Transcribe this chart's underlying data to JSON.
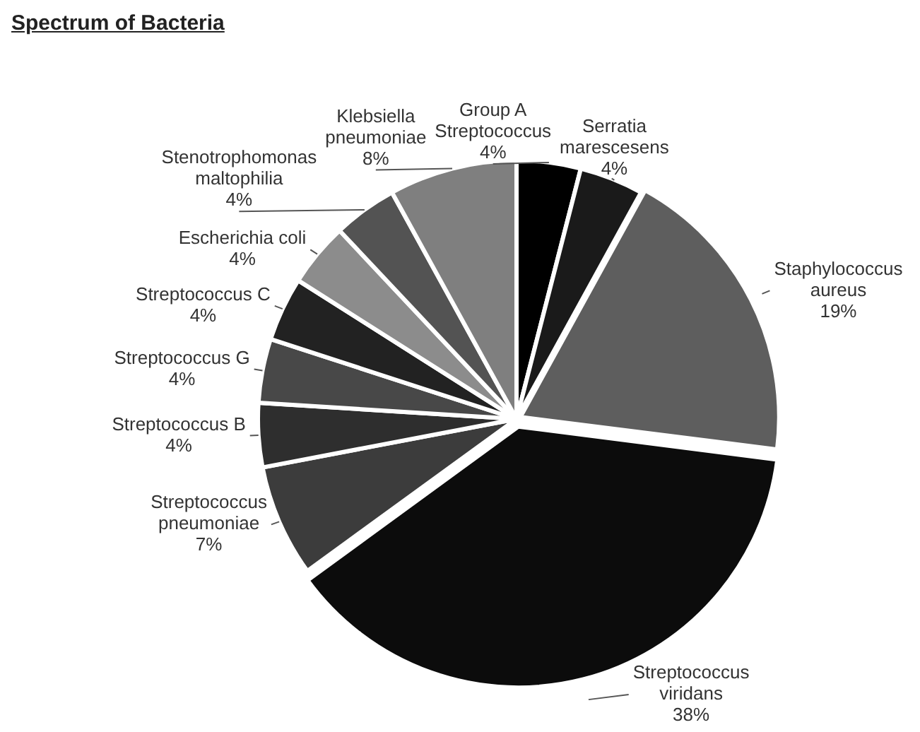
{
  "chart_data": {
    "type": "pie",
    "title": "Spectrum of Bacteria",
    "categories": [
      "Group A Streptococcus",
      "Serratia marescesens",
      "Staphylococcus aureus",
      "Streptococcus viridans",
      "Streptococcus pneumoniae",
      "Streptococcus B",
      "Streptococcus G",
      "Streptococcus C",
      "Escherichia coli",
      "Stenotrophomonas maltophilia",
      "Klebsiella pneumoniae"
    ],
    "values": [
      4,
      4,
      19,
      38,
      7,
      4,
      4,
      4,
      4,
      4,
      8
    ],
    "colors": [
      "#000000",
      "#1a1a1a",
      "#5e5e5e",
      "#0c0c0c",
      "#3c3c3c",
      "#2e2e2e",
      "#484848",
      "#222222",
      "#8c8c8c",
      "#535353",
      "#7f7f7f"
    ],
    "value_labels": [
      "4%",
      "4%",
      "19%",
      "38%",
      "7%",
      "4%",
      "4%",
      "4%",
      "4%",
      "4%",
      "8%"
    ]
  }
}
